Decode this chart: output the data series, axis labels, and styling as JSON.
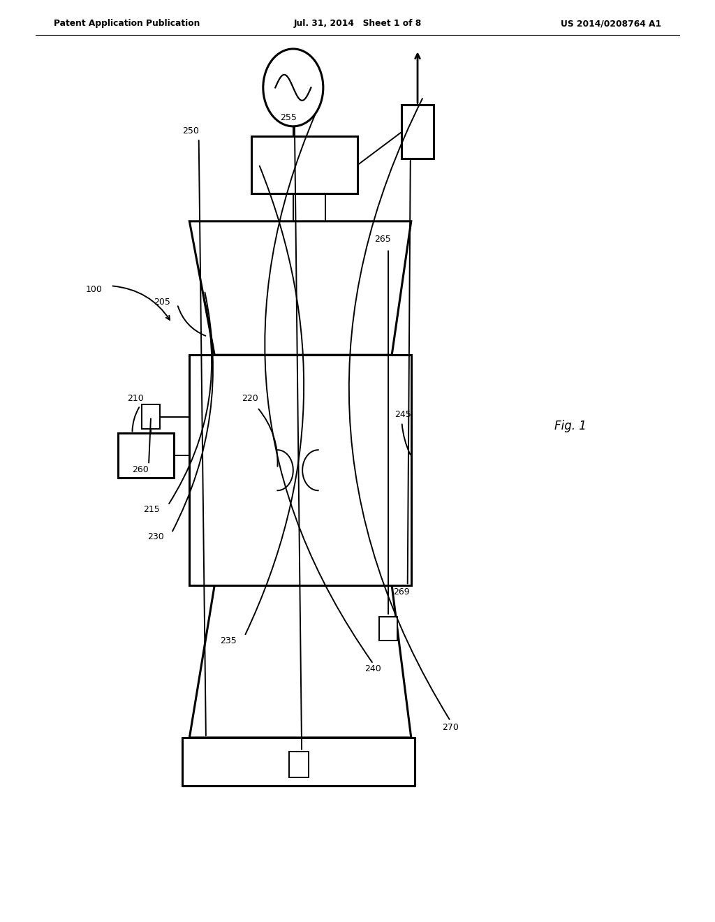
{
  "bg_color": "#ffffff",
  "header_left": "Patent Application Publication",
  "header_center": "Jul. 31, 2014   Sheet 1 of 8",
  "header_right": "US 2014/0208764 A1",
  "fig_label": "Fig. 1"
}
